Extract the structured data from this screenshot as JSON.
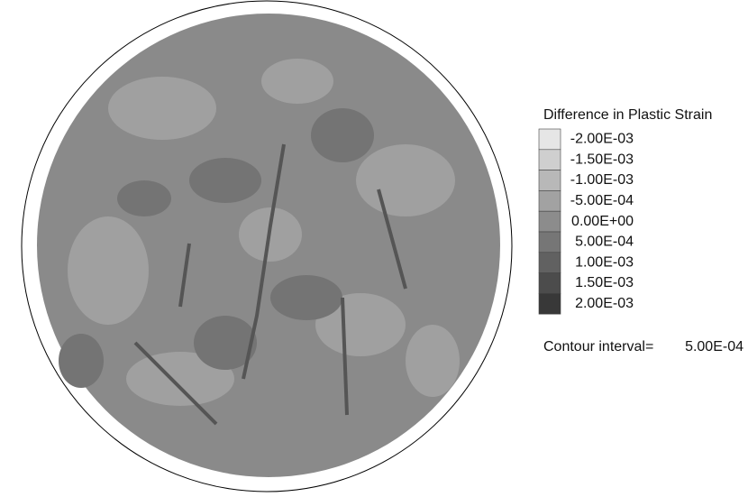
{
  "chart_data": {
    "type": "contour",
    "legend_title": "Difference in Plastic Strain",
    "levels": [
      {
        "value": -0.002,
        "label": "-2.00E-03"
      },
      {
        "value": -0.0015,
        "label": "-1.50E-03"
      },
      {
        "value": -0.001,
        "label": "-1.00E-03"
      },
      {
        "value": -0.0005,
        "label": "-5.00E-04"
      },
      {
        "value": 0,
        "label": "0.00E+00"
      },
      {
        "value": 0.0005,
        "label": "5.00E-04"
      },
      {
        "value": 0.001,
        "label": "1.00E-03"
      },
      {
        "value": 0.0015,
        "label": "1.50E-03"
      },
      {
        "value": 0.002,
        "label": "2.00E-03"
      }
    ],
    "level_colors": [
      "#e6e6e6",
      "#cfcfcf",
      "#b8b8b8",
      "#a2a2a2",
      "#8c8c8c",
      "#767676",
      "#616161",
      "#4c4c4c",
      "#383838"
    ],
    "contour_interval_text": "Contour interval=",
    "contour_interval": {
      "value": 0.0005,
      "label": "5.00E-04"
    }
  }
}
